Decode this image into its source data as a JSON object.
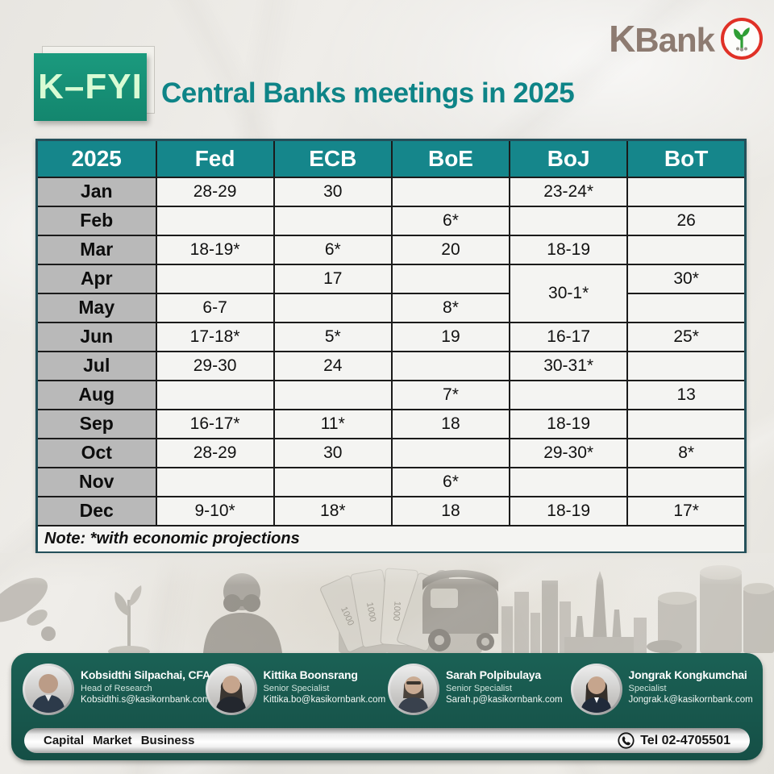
{
  "brand": {
    "k": "K",
    "bank": "Bank"
  },
  "header": {
    "badge": "K–FYI",
    "title": "Central Banks meetings in 2025"
  },
  "table": {
    "year": "2025",
    "columns": [
      "Fed",
      "ECB",
      "BoE",
      "BoJ",
      "BoT"
    ],
    "rows": [
      {
        "month": "Jan",
        "cells": [
          {
            "t": "28-29"
          },
          {
            "t": "30"
          },
          {
            "t": ""
          },
          {
            "t": "23-24*"
          },
          {
            "t": ""
          }
        ]
      },
      {
        "month": "Feb",
        "cells": [
          {
            "t": ""
          },
          {
            "t": ""
          },
          {
            "t": "6*"
          },
          {
            "t": ""
          },
          {
            "t": "26"
          }
        ]
      },
      {
        "month": "Mar",
        "cells": [
          {
            "t": "18-19*"
          },
          {
            "t": "6*"
          },
          {
            "t": "20"
          },
          {
            "t": "18-19"
          },
          {
            "t": ""
          }
        ]
      },
      {
        "month": "Apr",
        "cells": [
          {
            "t": ""
          },
          {
            "t": "17"
          },
          {
            "t": ""
          },
          {
            "t": "30-1*",
            "rowspan": 2
          },
          {
            "t": "30*"
          }
        ]
      },
      {
        "month": "May",
        "cells": [
          {
            "t": "6-7"
          },
          {
            "t": ""
          },
          {
            "t": "8*"
          },
          {
            "skip": true
          },
          {
            "t": ""
          }
        ]
      },
      {
        "month": "Jun",
        "cells": [
          {
            "t": "17-18*"
          },
          {
            "t": "5*"
          },
          {
            "t": "19"
          },
          {
            "t": "16-17"
          },
          {
            "t": "25*"
          }
        ]
      },
      {
        "month": "Jul",
        "cells": [
          {
            "t": "29-30"
          },
          {
            "t": "24"
          },
          {
            "t": ""
          },
          {
            "t": "30-31*"
          },
          {
            "t": ""
          }
        ]
      },
      {
        "month": "Aug",
        "cells": [
          {
            "t": ""
          },
          {
            "t": ""
          },
          {
            "t": "7*"
          },
          {
            "t": ""
          },
          {
            "t": "13"
          }
        ]
      },
      {
        "month": "Sep",
        "cells": [
          {
            "t": "16-17*"
          },
          {
            "t": "11*"
          },
          {
            "t": "18"
          },
          {
            "t": "18-19"
          },
          {
            "t": ""
          }
        ]
      },
      {
        "month": "Oct",
        "cells": [
          {
            "t": "28-29"
          },
          {
            "t": "30"
          },
          {
            "t": ""
          },
          {
            "t": "29-30*"
          },
          {
            "t": "8*"
          }
        ]
      },
      {
        "month": "Nov",
        "cells": [
          {
            "t": ""
          },
          {
            "t": ""
          },
          {
            "t": "6*"
          },
          {
            "t": ""
          },
          {
            "t": ""
          }
        ]
      },
      {
        "month": "Dec",
        "cells": [
          {
            "t": "9-10*"
          },
          {
            "t": "18*"
          },
          {
            "t": "18"
          },
          {
            "t": "18-19"
          },
          {
            "t": "17*"
          }
        ]
      }
    ],
    "note": "Note: *with economic projections"
  },
  "contacts": [
    {
      "name": "Kobsidthi Silpachai, CFA",
      "role": "Head of Research",
      "email": "Kobsidthi.s@kasikornbank.com"
    },
    {
      "name": "Kittika Boonsrang",
      "role": "Senior Specialist",
      "email": "Kittika.bo@kasikornbank.com"
    },
    {
      "name": "Sarah Polpibulaya",
      "role": "Senior Specialist",
      "email": "Sarah.p@kasikornbank.com"
    },
    {
      "name": "Jongrak Kongkumchai",
      "role": "Specialist",
      "email": "Jongrak.k@kasikornbank.com"
    }
  ],
  "footer": {
    "department": "Capital Market Business",
    "tel": "Tel 02-4705501"
  },
  "colors": {
    "header_teal": "#15868b",
    "title_teal": "#0e8487",
    "badge_green": "#169178",
    "badge_text": "#d9fbd4",
    "panel_green": "#17584e",
    "month_gray": "#b9b9b9",
    "cell_bg": "#f4f4f2",
    "logo_text": "#8d7b71",
    "logo_ring": "#e03127",
    "sprout_green": "#2f9e35"
  }
}
